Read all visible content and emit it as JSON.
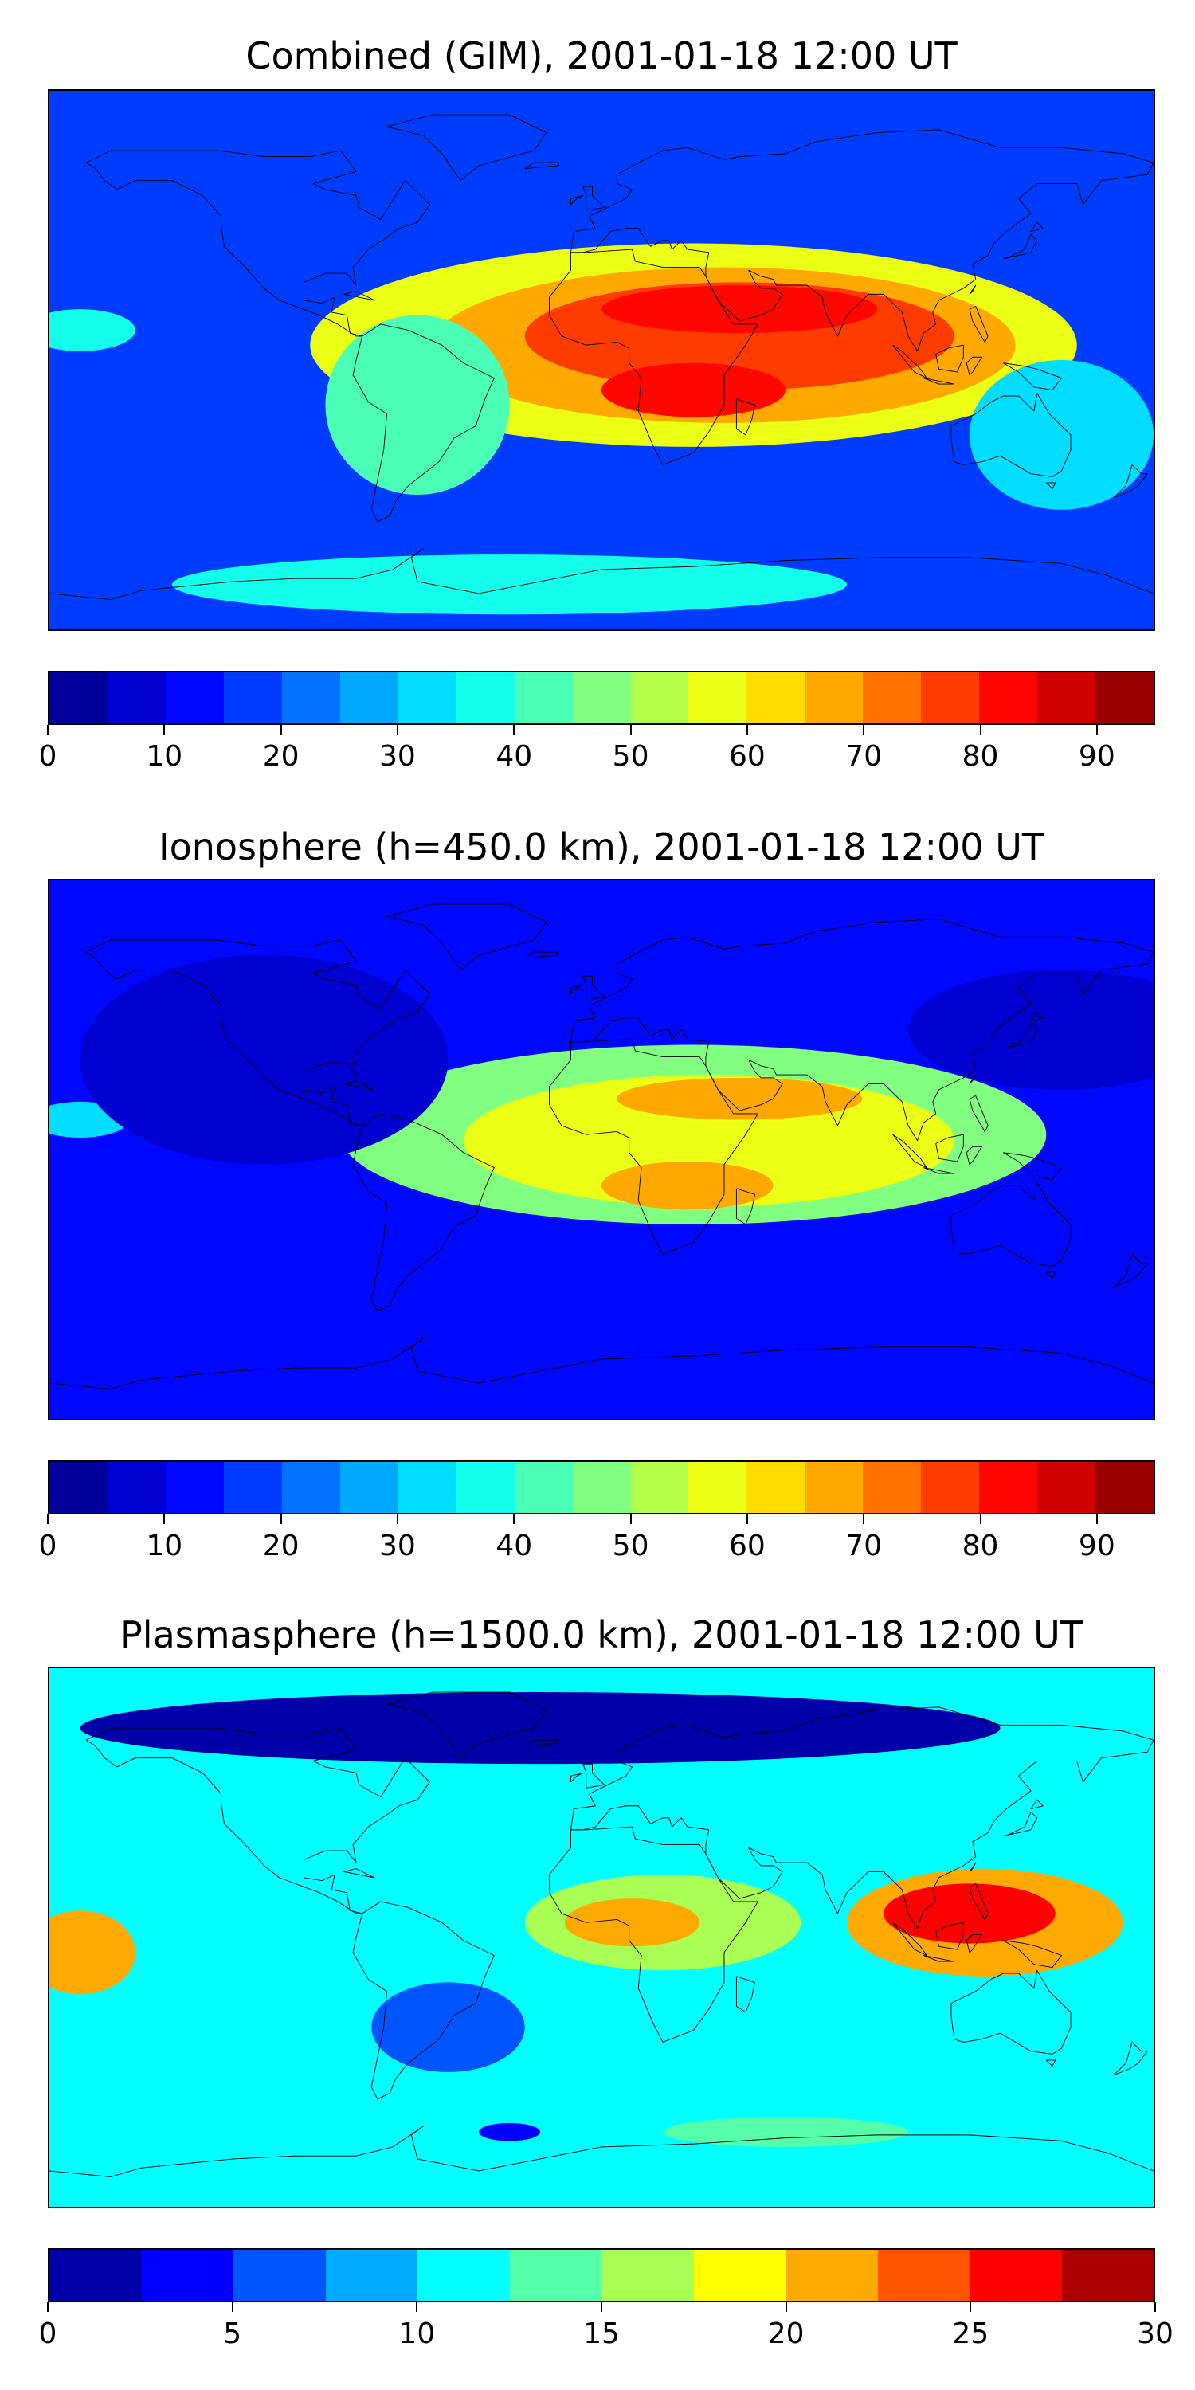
{
  "panels": [
    {
      "title": "Combined (GIM), 2001-01-18 12:00 UT",
      "colorbar": {
        "min": 0,
        "max": 95,
        "step": 5,
        "ticks": [
          "0",
          "10",
          "20",
          "30",
          "40",
          "50",
          "60",
          "70",
          "80",
          "90"
        ],
        "tick_values": [
          0,
          10,
          20,
          30,
          40,
          50,
          60,
          70,
          80,
          90
        ]
      },
      "field": {
        "background_level": 15,
        "blobs": [
          {
            "lon": 30,
            "lat": 5,
            "rx": 125,
            "ry": 34,
            "level": 55
          },
          {
            "lon": 40,
            "lat": 5,
            "rx": 95,
            "ry": 26,
            "level": 65
          },
          {
            "lon": 45,
            "lat": 8,
            "rx": 70,
            "ry": 18,
            "level": 75
          },
          {
            "lon": 45,
            "lat": 17,
            "rx": 45,
            "ry": 8,
            "level": 82
          },
          {
            "lon": 30,
            "lat": -10,
            "rx": 30,
            "ry": 9,
            "level": 82
          },
          {
            "lon": -60,
            "lat": -15,
            "rx": 30,
            "ry": 30,
            "level": 40
          },
          {
            "lon": -170,
            "lat": 10,
            "rx": 18,
            "ry": 7,
            "level": 35
          },
          {
            "lon": 150,
            "lat": -25,
            "rx": 30,
            "ry": 25,
            "level": 30
          },
          {
            "lon": -30,
            "lat": -75,
            "rx": 110,
            "ry": 10,
            "level": 35
          }
        ]
      }
    },
    {
      "title": "Ionosphere  (h=450.0 km), 2001-01-18 12:00 UT",
      "colorbar": {
        "min": 0,
        "max": 95,
        "step": 5,
        "ticks": [
          "0",
          "10",
          "20",
          "30",
          "40",
          "50",
          "60",
          "70",
          "80",
          "90"
        ],
        "tick_values": [
          0,
          10,
          20,
          30,
          40,
          50,
          60,
          70,
          80,
          90
        ]
      },
      "field": {
        "background_level": 14,
        "blobs": [
          {
            "lon": 30,
            "lat": 5,
            "rx": 115,
            "ry": 30,
            "level": 45
          },
          {
            "lon": 35,
            "lat": 3,
            "rx": 80,
            "ry": 22,
            "level": 55
          },
          {
            "lon": 45,
            "lat": 17,
            "rx": 40,
            "ry": 7,
            "level": 65
          },
          {
            "lon": 28,
            "lat": -12,
            "rx": 28,
            "ry": 8,
            "level": 66
          },
          {
            "lon": -170,
            "lat": 10,
            "rx": 16,
            "ry": 6,
            "level": 30
          },
          {
            "lon": -110,
            "lat": 30,
            "rx": 60,
            "ry": 35,
            "level": 8
          },
          {
            "lon": 150,
            "lat": 40,
            "rx": 50,
            "ry": 20,
            "level": 8
          }
        ]
      }
    },
    {
      "title": "Plasmasphere (h=1500.0 km), 2001-01-18 12:00 UT",
      "colorbar": {
        "min": 0,
        "max": 30,
        "step": 2.5,
        "ticks": [
          "0",
          "5",
          "10",
          "15",
          "20",
          "25",
          "30"
        ],
        "tick_values": [
          0,
          5,
          10,
          15,
          20,
          25,
          30
        ]
      },
      "field": {
        "background_level": 11,
        "blobs": [
          {
            "lon": -20,
            "lat": 70,
            "rx": 150,
            "ry": 12,
            "level": 2
          },
          {
            "lon": 20,
            "lat": 5,
            "rx": 45,
            "ry": 16,
            "level": 17
          },
          {
            "lon": 10,
            "lat": 5,
            "rx": 22,
            "ry": 8,
            "level": 21
          },
          {
            "lon": 125,
            "lat": 5,
            "rx": 45,
            "ry": 18,
            "level": 22
          },
          {
            "lon": 120,
            "lat": 8,
            "rx": 28,
            "ry": 10,
            "level": 27
          },
          {
            "lon": -170,
            "lat": -5,
            "rx": 18,
            "ry": 14,
            "level": 21
          },
          {
            "lon": -50,
            "lat": -30,
            "rx": 25,
            "ry": 15,
            "level": 7
          },
          {
            "lon": 60,
            "lat": -65,
            "rx": 40,
            "ry": 5,
            "level": 13
          },
          {
            "lon": -30,
            "lat": -65,
            "rx": 10,
            "ry": 3,
            "level": 3
          }
        ]
      }
    }
  ]
}
